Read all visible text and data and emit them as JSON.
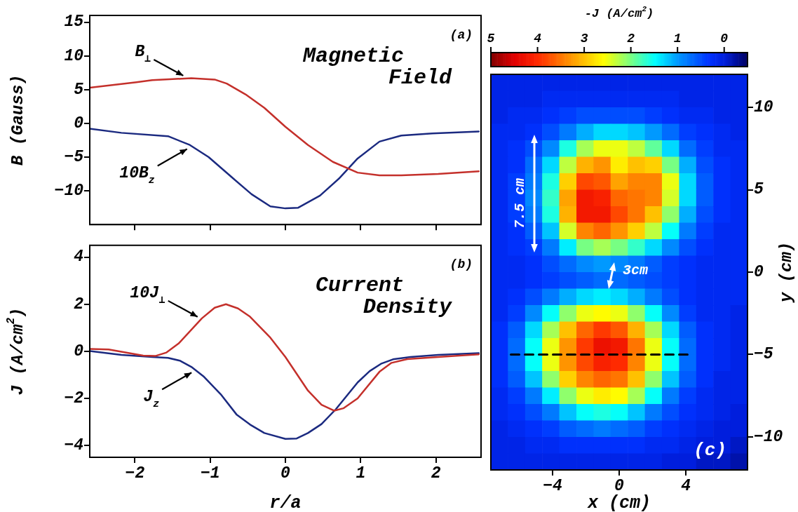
{
  "chart_data": [
    {
      "type": "line",
      "title": "Magnetic Field",
      "ylabel": "B (Gauss)",
      "xlim": [
        -2.6,
        2.6
      ],
      "xticks": [
        -2,
        -1,
        0,
        1,
        2
      ],
      "ylim": [
        -15,
        16
      ],
      "yticks": [
        -10,
        -5,
        0,
        5,
        10,
        15
      ],
      "tick_labels": "y",
      "series": [
        {
          "color": "#c4302b",
          "x": [
            -2.6,
            -1.98,
            -1.77,
            -1.25,
            -0.94,
            -0.78,
            -0.53,
            -0.28,
            0,
            0.3,
            0.63,
            0.96,
            1.25,
            1.54,
            2.03,
            2.57
          ],
          "values": [
            5.3,
            6.1,
            6.4,
            6.7,
            6.5,
            5.9,
            4.3,
            2.3,
            -0.5,
            -3.2,
            -5.7,
            -7.3,
            -7.7,
            -7.7,
            -7.5,
            -7.1
          ]
        },
        {
          "color": "#1b2a80",
          "x": [
            -2.6,
            -2.18,
            -1.56,
            -1.27,
            -1.02,
            -0.69,
            -0.45,
            -0.2,
            0,
            0.17,
            0.46,
            0.71,
            0.96,
            1.25,
            1.54,
            1.95,
            2.57
          ],
          "values": [
            -0.8,
            -1.4,
            -1.9,
            -3.2,
            -5.0,
            -8.2,
            -10.5,
            -12.3,
            -12.6,
            -12.5,
            -10.7,
            -8.2,
            -5.2,
            -2.7,
            -1.8,
            -1.5,
            -1.2
          ]
        }
      ],
      "annotations": [
        {
          "text": "B$_{⊥}$",
          "x": -1.32,
          "y": 6.6
        },
        {
          "text": "10B$_{z}$",
          "x": -1.27,
          "y": -3.3
        },
        "(a)"
      ]
    },
    {
      "type": "line",
      "title": "Current Density",
      "xlabel": "r/a",
      "ylabel": "J (A/cm$^{2}$)",
      "xlim": [
        -2.6,
        2.6
      ],
      "xticks": [
        -2,
        -1,
        0,
        1,
        2
      ],
      "ylim": [
        -4.5,
        4.5
      ],
      "yticks": [
        -4,
        -2,
        0,
        2,
        4
      ],
      "series": [
        {
          "color": "#c4302b",
          "x": [
            -2.6,
            -2.35,
            -1.89,
            -1.73,
            -1.58,
            -1.42,
            -1.11,
            -0.94,
            -0.79,
            -0.63,
            -0.47,
            -0.2,
            0,
            0.3,
            0.48,
            0.65,
            0.77,
            0.96,
            1.25,
            1.41,
            1.62,
            2.03,
            2.57
          ],
          "values": [
            0.1,
            0.08,
            -0.18,
            -0.2,
            -0.05,
            0.33,
            1.4,
            1.85,
            2.0,
            1.82,
            1.47,
            0.58,
            -0.24,
            -1.67,
            -2.27,
            -2.52,
            -2.42,
            -2.0,
            -0.87,
            -0.49,
            -0.33,
            -0.24,
            -0.13
          ]
        },
        {
          "color": "#1b2a80",
          "x": [
            -2.6,
            -2.18,
            -1.77,
            -1.56,
            -1.4,
            -1.25,
            -1.09,
            -0.86,
            -0.65,
            -0.47,
            -0.28,
            0,
            0.15,
            0.3,
            0.48,
            0.67,
            0.96,
            1.12,
            1.27,
            1.43,
            1.66,
            2.03,
            2.57
          ],
          "values": [
            0.01,
            -0.15,
            -0.24,
            -0.28,
            -0.4,
            -0.66,
            -1.06,
            -1.82,
            -2.68,
            -3.11,
            -3.47,
            -3.72,
            -3.7,
            -3.47,
            -3.09,
            -2.46,
            -1.32,
            -0.84,
            -0.53,
            -0.34,
            -0.24,
            -0.15,
            -0.08
          ]
        }
      ],
      "annotations": [
        {
          "text": "10J$_{⊥}$",
          "x": -1.13,
          "y": 1.33
        },
        {
          "text": "J$_{z}$",
          "x": -1.21,
          "y": -0.76
        },
        "(b)"
      ]
    },
    {
      "type": "heatmap",
      "xlabel": "x (cm)",
      "ylabel": "y (cm)",
      "clabel": "-J (A/cm$^{2}$)",
      "clim": [
        5,
        -0.5
      ],
      "cticks": [
        5,
        4,
        3,
        2,
        1,
        0
      ],
      "xlim": [
        -7.7,
        7.7
      ],
      "xticks": [
        -4,
        0,
        4
      ],
      "ylim": [
        -12,
        12
      ],
      "yticks": [
        -10,
        -5,
        0,
        5,
        10
      ],
      "x": [
        -7.19,
        -6.16,
        -5.13,
        -4.11,
        -3.08,
        -2.05,
        -1.03,
        0,
        1.03,
        2.05,
        3.08,
        4.11,
        5.13,
        6.16,
        7.19
      ],
      "y": [
        11.5,
        10.5,
        9.5,
        8.5,
        7.5,
        6.5,
        5.5,
        4.5,
        3.5,
        2.5,
        1.5,
        0.5,
        -0.5,
        -1.5,
        -2.5,
        -3.5,
        -4.5,
        -5.5,
        -6.5,
        -7.5,
        -8.5,
        -9.5,
        -10.5,
        -11.5
      ],
      "cells": [
        [
          0.1,
          0.1,
          0.1,
          0.1,
          0.1,
          0.1,
          0.1,
          0.1,
          0.1,
          0.1,
          0.1,
          0.1,
          0.1,
          0.1,
          0.1
        ],
        [
          0.1,
          0.1,
          0.1,
          0.2,
          0.2,
          0.2,
          0.2,
          0.2,
          0.2,
          0.2,
          0.2,
          0.1,
          0.1,
          0.1,
          0.1
        ],
        [
          0.1,
          0.2,
          0.2,
          0.3,
          0.4,
          0.5,
          0.5,
          0.5,
          0.5,
          0.4,
          0.3,
          0.2,
          0.2,
          0.1,
          0.1
        ],
        [
          0.2,
          0.2,
          0.3,
          0.5,
          0.8,
          1.1,
          1.3,
          1.3,
          1.2,
          1.0,
          0.7,
          0.4,
          0.3,
          0.2,
          0.1
        ],
        [
          0.2,
          0.3,
          0.5,
          0.9,
          1.6,
          2.2,
          2.5,
          2.5,
          2.3,
          1.9,
          1.3,
          0.7,
          0.4,
          0.2,
          0.2
        ],
        [
          0.2,
          0.3,
          0.7,
          1.3,
          2.3,
          3.1,
          3.3,
          2.7,
          3.0,
          2.9,
          2.0,
          1.1,
          0.5,
          0.3,
          0.2
        ],
        [
          0.2,
          0.4,
          0.8,
          1.6,
          2.9,
          3.8,
          3.7,
          3.2,
          3.4,
          3.4,
          2.5,
          1.3,
          0.6,
          0.3,
          0.2
        ],
        [
          0.2,
          0.4,
          0.9,
          1.7,
          3.2,
          4.2,
          4.1,
          3.6,
          3.5,
          3.4,
          2.4,
          1.3,
          0.6,
          0.3,
          0.2
        ],
        [
          0.2,
          0.4,
          0.8,
          1.6,
          3.1,
          4.2,
          4.2,
          3.8,
          3.5,
          3.0,
          2.1,
          1.1,
          0.5,
          0.3,
          0.2
        ],
        [
          0.2,
          0.3,
          0.6,
          1.2,
          2.4,
          3.4,
          3.6,
          3.3,
          2.9,
          2.3,
          1.5,
          0.8,
          0.4,
          0.2,
          0.2
        ],
        [
          0.2,
          0.3,
          0.4,
          0.8,
          1.4,
          2.0,
          2.2,
          2.0,
          1.7,
          1.3,
          0.9,
          0.5,
          0.3,
          0.2,
          0.2
        ],
        [
          0.2,
          0.2,
          0.3,
          0.5,
          0.7,
          0.9,
          1.0,
          0.9,
          0.8,
          0.6,
          0.4,
          0.3,
          0.2,
          0.2,
          0.2
        ],
        [
          0.2,
          0.2,
          0.3,
          0.4,
          0.5,
          0.6,
          0.7,
          0.7,
          0.6,
          0.5,
          0.4,
          0.3,
          0.2,
          0.2,
          0.2
        ],
        [
          0.2,
          0.3,
          0.5,
          0.8,
          1.1,
          1.3,
          1.4,
          1.3,
          1.1,
          0.8,
          0.5,
          0.3,
          0.2,
          0.2,
          0.2
        ],
        [
          0.2,
          0.4,
          0.9,
          1.5,
          2.1,
          2.5,
          2.6,
          2.5,
          2.1,
          1.5,
          0.9,
          0.4,
          0.2,
          0.2,
          0.1
        ],
        [
          0.3,
          0.6,
          1.3,
          2.2,
          3.0,
          3.6,
          3.9,
          3.7,
          3.1,
          2.2,
          1.3,
          0.6,
          0.3,
          0.2,
          0.1
        ],
        [
          0.3,
          0.7,
          1.5,
          2.5,
          3.3,
          3.9,
          4.3,
          4.2,
          3.5,
          2.5,
          1.5,
          0.7,
          0.3,
          0.2,
          0.1
        ],
        [
          0.3,
          0.7,
          1.5,
          2.5,
          3.3,
          3.8,
          4.1,
          4.0,
          3.4,
          2.5,
          1.5,
          0.7,
          0.3,
          0.2,
          0.1
        ],
        [
          0.3,
          0.6,
          1.2,
          2.1,
          2.9,
          3.4,
          3.6,
          3.5,
          3.0,
          2.1,
          1.2,
          0.6,
          0.3,
          0.1,
          0.1
        ],
        [
          0.2,
          0.4,
          0.8,
          1.4,
          2.1,
          2.5,
          2.7,
          2.6,
          2.2,
          1.5,
          0.8,
          0.4,
          0.2,
          0.1,
          0.1
        ],
        [
          0.2,
          0.3,
          0.5,
          0.8,
          1.2,
          1.5,
          1.6,
          1.5,
          1.2,
          0.8,
          0.5,
          0.3,
          0.2,
          0.1,
          0.0
        ],
        [
          0.1,
          0.2,
          0.3,
          0.4,
          0.6,
          0.7,
          0.8,
          0.7,
          0.6,
          0.4,
          0.3,
          0.2,
          0.1,
          0.0,
          0.0
        ],
        [
          0.1,
          0.1,
          0.2,
          0.2,
          0.3,
          0.3,
          0.3,
          0.3,
          0.3,
          0.2,
          0.2,
          0.1,
          0.0,
          0.0,
          -0.1
        ],
        [
          0.1,
          0.1,
          0.1,
          0.1,
          0.1,
          0.1,
          0.1,
          0.1,
          0.1,
          0.1,
          0.0,
          0.0,
          -0.1,
          -0.1,
          -0.2
        ]
      ],
      "series": [
        {
          "type": "line",
          "x": [
            -6.5,
            4.1
          ],
          "values": [
            -5,
            -5
          ],
          "color": "#000000",
          "line_style": "dashed"
        }
      ],
      "annotations": [
        "7.5 cm",
        "3cm",
        "(c)"
      ]
    }
  ]
}
